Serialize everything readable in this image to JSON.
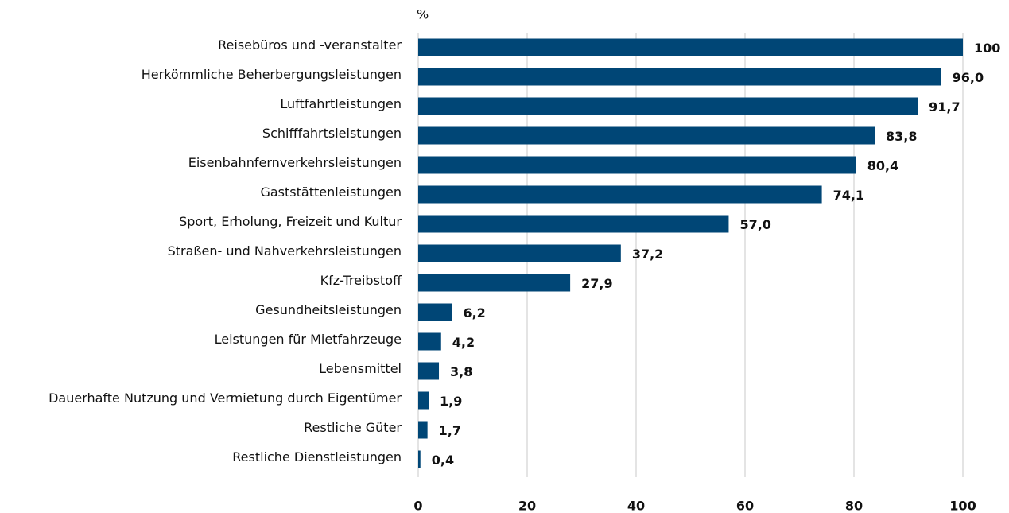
{
  "chart_data": {
    "type": "hbar",
    "axis_label": "%",
    "categories": [
      "Reisebüros und -veranstalter",
      "Herkömmliche Beherbergungsleistungen",
      "Luftfahrtleistungen",
      "Schifffahrtsleistungen",
      "Eisenbahnfernverkehrsleistungen",
      "Gaststättenleistungen",
      "Sport, Erholung, Freizeit und Kultur",
      "Straßen- und Nahverkehrsleistungen",
      "Kfz-Treibstoff",
      "Gesundheitsleistungen",
      "Leistungen für Mietfahrzeuge",
      "Lebensmittel",
      "Dauerhafte Nutzung und Vermietung durch Eigentümer",
      "Restliche Güter",
      "Restliche Dienstleistungen"
    ],
    "values": [
      100,
      96.0,
      91.7,
      83.8,
      80.4,
      74.1,
      57.0,
      37.2,
      27.9,
      6.2,
      4.2,
      3.8,
      1.9,
      1.7,
      0.4
    ],
    "value_labels": [
      "100",
      "96,0",
      "91,7",
      "83,8",
      "80,4",
      "74,1",
      "57,0",
      "37,2",
      "27,9",
      "6,2",
      "4,2",
      "3,8",
      "1,9",
      "1,7",
      "0,4"
    ],
    "color": "#004676",
    "xlim": [
      0,
      100
    ],
    "xticks": [
      0,
      20,
      40,
      60,
      80,
      100
    ],
    "grid": true
  }
}
